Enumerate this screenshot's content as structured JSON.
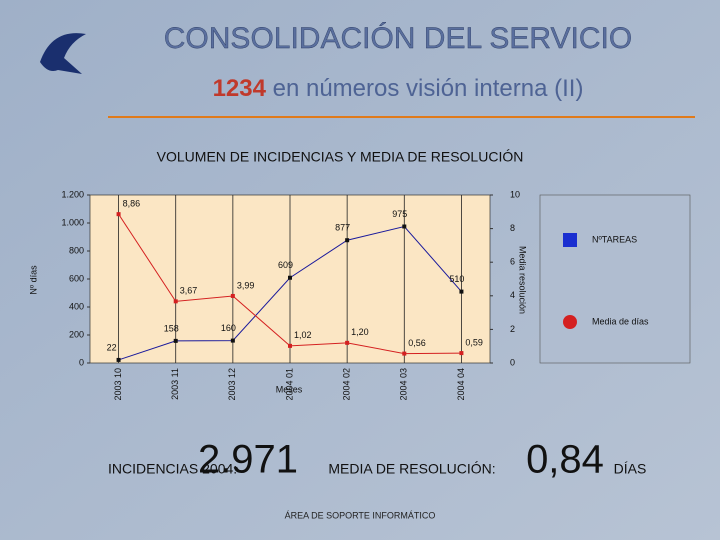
{
  "header": {
    "title": "CONSOLIDACIÓN DEL SERVICIO",
    "subtitle_code": "1234",
    "subtitle": "en números visión interna (II)"
  },
  "chart_data": {
    "type": "line",
    "title": "VOLUMEN DE INCIDENCIAS Y MEDIA DE RESOLUCIÓN",
    "categories": [
      "2003 10",
      "2003 11",
      "2003 12",
      "2004 01",
      "2004 02",
      "2004 03",
      "2004 04"
    ],
    "x_label": "Meses",
    "y_label": "Nº días",
    "y2_label": "Media resolución",
    "ylim": [
      0,
      1200
    ],
    "yticks": [
      0,
      200,
      400,
      600,
      800,
      {
        "value": 1000,
        "label": "1.000"
      },
      {
        "value": 1200,
        "label": "1.200"
      }
    ],
    "y2lim": [
      0,
      10
    ],
    "y2ticks": [
      0,
      2,
      4,
      6,
      8,
      10
    ],
    "grid": true,
    "legend": "right",
    "series": [
      {
        "name": "NºTAREAS",
        "color": "#1a1a9c",
        "values": [
          22,
          158,
          160,
          609,
          877,
          975,
          510
        ]
      },
      {
        "name": "Media de días",
        "color": "#d42020",
        "axis": "y2",
        "values": [
          8.86,
          3.67,
          3.99,
          1.02,
          1.2,
          0.56,
          0.59
        ],
        "value_labels": [
          "8,86",
          "3,67",
          "3,99",
          "1,02",
          "1,20",
          "0,56",
          "0,59"
        ]
      }
    ]
  },
  "summary": {
    "incidencias_label": "INCIDENCIAS 2004:",
    "incidencias_value": "2.971",
    "media_label": "MEDIA DE RESOLUCIÓN:",
    "media_value": "0,84",
    "media_unit": "DÍAS"
  },
  "footer": "ÁREA DE SOPORTE INFORMÁTICO"
}
